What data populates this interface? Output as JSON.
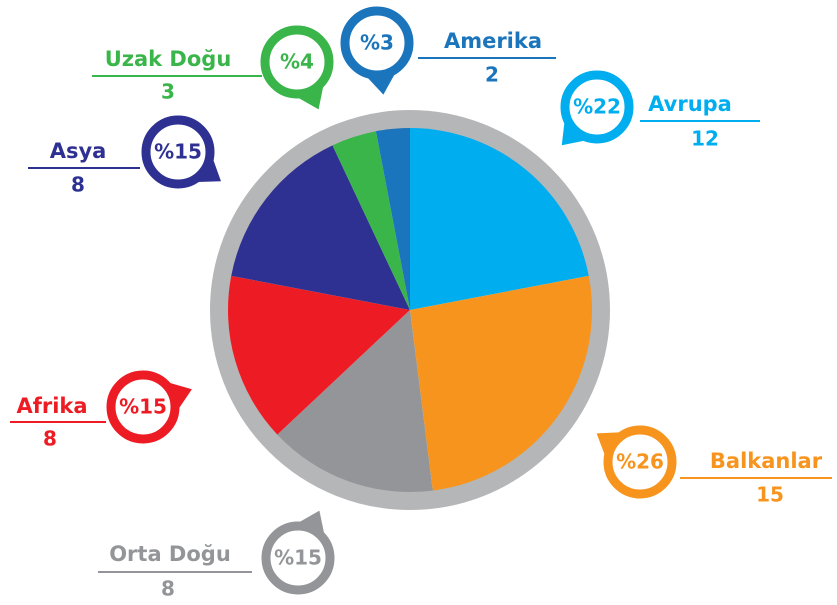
{
  "chart_data": {
    "type": "pie",
    "categories": [
      "Avrupa",
      "Balkanlar",
      "Orta Doğu",
      "Afrika",
      "Asya",
      "Uzak Doğu",
      "Amerika"
    ],
    "values": [
      22,
      26,
      15,
      15,
      15,
      4,
      3
    ],
    "value_labels": [
      "%22",
      "%26",
      "%15",
      "%15",
      "%15",
      "%4",
      "%3"
    ],
    "counts": [
      12,
      15,
      8,
      8,
      8,
      3,
      2
    ],
    "colors": [
      "#00aeef",
      "#f7941d",
      "#939598",
      "#ed1c24",
      "#2e3192",
      "#39b54a",
      "#1b75bc"
    ]
  }
}
